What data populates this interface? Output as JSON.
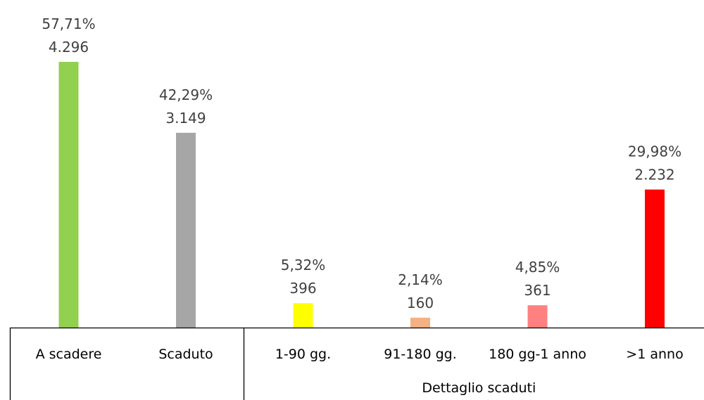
{
  "chart_data": {
    "type": "bar",
    "categories": [
      "A scadere",
      "Scaduto",
      "1-90 gg.",
      "91-180 gg.",
      "180 gg-1 anno",
      ">1 anno"
    ],
    "values": [
      4296,
      3149,
      396,
      160,
      361,
      2232
    ],
    "percent_labels": [
      "57,71%",
      "42,29%",
      "5,32%",
      "2,14%",
      "4,85%",
      "29,98%"
    ],
    "value_labels": [
      "4.296",
      "3.149",
      "396",
      "160",
      "361",
      "2.232"
    ],
    "colors": [
      "#92d050",
      "#a6a6a6",
      "#ffff00",
      "#f4b183",
      "#ff8080",
      "#ff0000"
    ],
    "groups": [
      {
        "label": "",
        "categories": [
          "A scadere",
          "Scaduto"
        ]
      },
      {
        "label": "Dettaglio scaduti",
        "categories": [
          "1-90 gg.",
          "91-180 gg.",
          "180 gg-1 anno",
          ">1 anno"
        ]
      }
    ],
    "title": "",
    "xlabel": "",
    "ylabel": "",
    "ylim": [
      0,
      4296
    ],
    "grid": false,
    "legend": "none"
  }
}
